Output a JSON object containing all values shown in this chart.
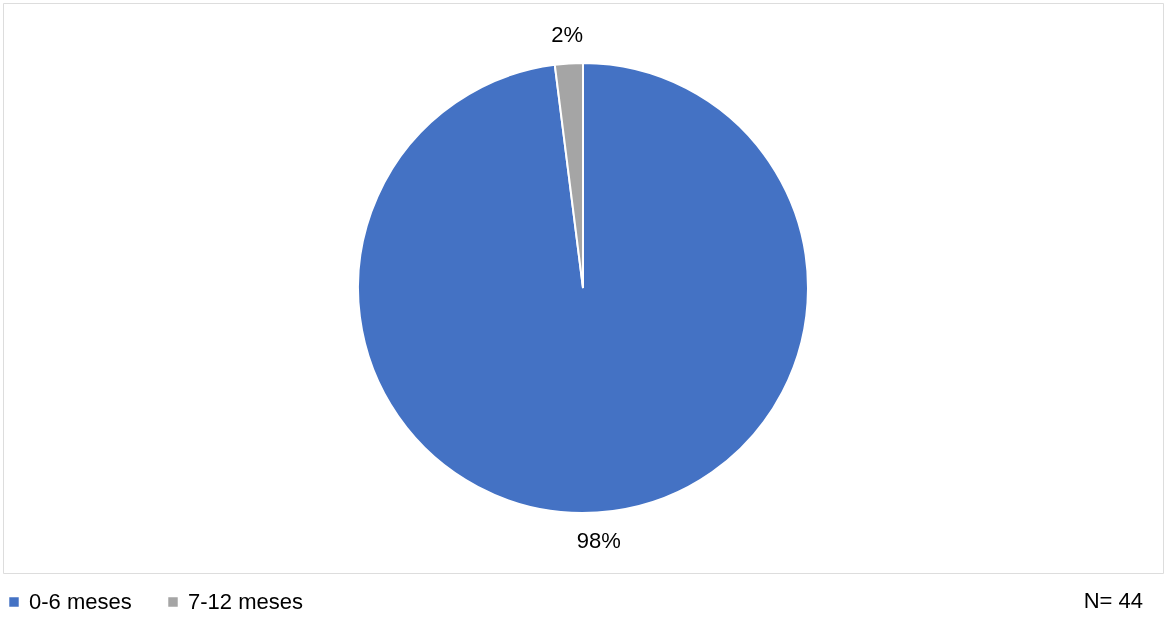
{
  "chart_data": {
    "type": "pie",
    "categories": [
      "0-6 meses",
      "7-12 meses"
    ],
    "values": [
      98,
      2
    ],
    "colors": [
      "#4472c4",
      "#a5a5a5"
    ],
    "value_labels": [
      "98%",
      "2%"
    ],
    "legend": "bottom",
    "annotations": [
      "N= 44"
    ]
  }
}
